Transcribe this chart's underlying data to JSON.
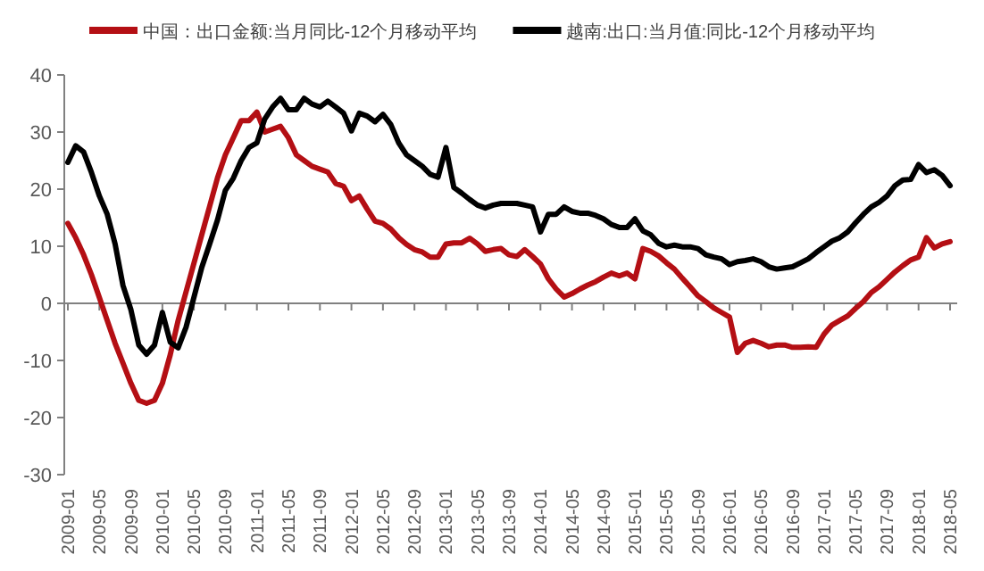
{
  "chart_data": {
    "type": "line",
    "ylim": [
      -30,
      40
    ],
    "yticks": [
      -30,
      -20,
      -10,
      0,
      10,
      20,
      30,
      40
    ],
    "legend": "top",
    "categories": [
      "2009-01",
      null,
      null,
      null,
      "2009-05",
      null,
      null,
      null,
      "2009-09",
      null,
      null,
      null,
      "2010-01",
      null,
      null,
      null,
      "2010-05",
      null,
      null,
      null,
      "2010-09",
      null,
      null,
      null,
      "2011-01",
      null,
      null,
      null,
      "2011-05",
      null,
      null,
      null,
      "2011-09",
      null,
      null,
      null,
      "2012-01",
      null,
      null,
      null,
      "2012-05",
      null,
      null,
      null,
      "2012-09",
      null,
      null,
      null,
      "2013-01",
      null,
      null,
      null,
      "2013-05",
      null,
      null,
      null,
      "2013-09",
      null,
      null,
      null,
      "2014-01",
      null,
      null,
      null,
      "2014-05",
      null,
      null,
      null,
      "2014-09",
      null,
      null,
      null,
      "2015-01",
      null,
      null,
      null,
      "2015-05",
      null,
      null,
      null,
      "2015-09",
      null,
      null,
      null,
      "2016-01",
      null,
      null,
      null,
      "2016-05",
      null,
      null,
      null,
      "2016-09",
      null,
      null,
      null,
      "2017-01",
      null,
      null,
      null,
      "2017-05",
      null,
      null,
      null,
      "2017-09",
      null,
      null,
      null,
      "2018-01",
      null,
      null,
      null,
      "2018-05"
    ],
    "series": [
      {
        "name": "中国：出口金额:当月同比-12个月移动平均",
        "color": "#b40f14",
        "values": [
          14,
          11.5,
          8.5,
          5,
          1,
          -3,
          -7,
          -10.5,
          -14,
          -17,
          -17.5,
          -17,
          -14,
          -9,
          -3,
          2,
          7,
          12,
          17,
          22,
          26,
          29,
          32,
          32,
          33.5,
          30,
          30.5,
          31,
          29,
          26,
          25,
          24,
          23.5,
          23,
          21,
          20.5,
          18,
          18.8,
          16.5,
          14.4,
          14,
          13,
          11.5,
          10.3,
          9.4,
          9,
          8.1,
          8.1,
          10.4,
          10.6,
          10.6,
          11.4,
          10.4,
          9.1,
          9.4,
          9.6,
          8.5,
          8.2,
          9.4,
          8.2,
          6.9,
          4.3,
          2.5,
          1.1,
          1.7,
          2.5,
          3.2,
          3.8,
          4.6,
          5.3,
          4.8,
          5.3,
          4.3,
          9.6,
          9.1,
          8.3,
          7.1,
          6,
          4.4,
          2.9,
          1.3,
          0.3,
          -0.8,
          -1.6,
          -2.4,
          -8.6,
          -7,
          -6.5,
          -7,
          -7.6,
          -7.3,
          -7.3,
          -7.7,
          -7.7,
          -7.6,
          -7.7,
          -5.4,
          -3.8,
          -3,
          -2.2,
          -0.9,
          0.3,
          1.9,
          2.9,
          4.2,
          5.5,
          6.6,
          7.6,
          8.1,
          11.5,
          9.7,
          10.4,
          10.8
        ]
      },
      {
        "name": "越南:出口:当月值:同比-12个月移动平均",
        "color": "#000000",
        "values": [
          24.7,
          27.6,
          26.5,
          22.9,
          18.8,
          15.6,
          10.4,
          3.1,
          -1.1,
          -7.3,
          -8.9,
          -7.3,
          -1.6,
          -6.8,
          -7.8,
          -4.2,
          1,
          6.3,
          10.4,
          14.6,
          19.8,
          21.9,
          25,
          27.3,
          28.1,
          32.3,
          34.4,
          35.9,
          33.9,
          33.9,
          35.9,
          34.9,
          34.4,
          35.4,
          34.4,
          33.3,
          30.2,
          33.3,
          32.8,
          31.8,
          33.1,
          31.3,
          28.1,
          26,
          25,
          24,
          22.6,
          22.1,
          27.3,
          20.3,
          19.3,
          18.2,
          17.2,
          16.7,
          17.2,
          17.5,
          17.5,
          17.5,
          17.2,
          16.9,
          12.5,
          15.6,
          15.6,
          16.9,
          16.1,
          15.8,
          15.8,
          15.4,
          14.8,
          13.8,
          13.3,
          13.3,
          14.8,
          12.7,
          12,
          10.5,
          9.9,
          10.2,
          9.9,
          9.9,
          9.6,
          8.5,
          8.1,
          7.8,
          6.8,
          7.3,
          7.5,
          7.8,
          7.3,
          6.4,
          6,
          6.2,
          6.4,
          7.1,
          7.8,
          8.9,
          9.9,
          10.9,
          11.5,
          12.5,
          14.1,
          15.6,
          16.9,
          17.7,
          18.8,
          20.6,
          21.6,
          21.7,
          24.3,
          22.9,
          23.4,
          22.4,
          20.6
        ]
      }
    ]
  }
}
